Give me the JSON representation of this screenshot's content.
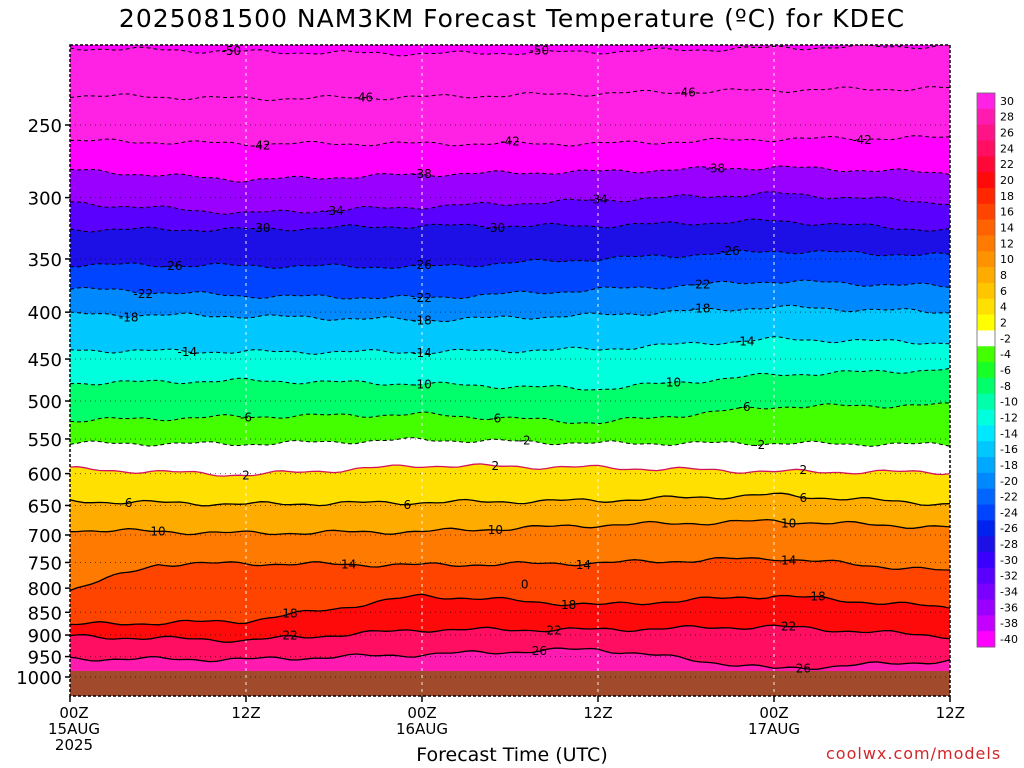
{
  "title": "2025081500 NAM3KM Forecast Temperature (ºC) for KDEC",
  "credit": "coolwx.com/models",
  "chart_data": {
    "type": "heatmap",
    "title": "2025081500 NAM3KM Forecast Temperature (ºC) for KDEC",
    "xlabel": "Forecast Time (UTC)",
    "x_ticks": [
      {
        "hour": 0,
        "lines": [
          "00Z",
          "15AUG",
          "2025"
        ]
      },
      {
        "hour": 12,
        "lines": [
          "12Z"
        ]
      },
      {
        "hour": 24,
        "lines": [
          "00Z",
          "16AUG"
        ]
      },
      {
        "hour": 36,
        "lines": [
          "12Z"
        ]
      },
      {
        "hour": 48,
        "lines": [
          "00Z",
          "17AUG"
        ]
      },
      {
        "hour": 60,
        "lines": [
          "12Z"
        ]
      }
    ],
    "xlim": [
      0,
      60
    ],
    "ylabel": "",
    "y_ticks": [
      250,
      300,
      350,
      400,
      450,
      500,
      550,
      600,
      650,
      700,
      750,
      800,
      850,
      900,
      950,
      1000
    ],
    "ylim": [
      1050,
      200
    ],
    "y_scale": "log",
    "colorbar_labels": [
      "30",
      "28",
      "26",
      "24",
      "22",
      "20",
      "18",
      "16",
      "14",
      "12",
      "10",
      "8",
      "6",
      "4",
      "2",
      "-2",
      "-4",
      "-6",
      "-8",
      "-10",
      "-12",
      "-14",
      "-16",
      "-18",
      "-20",
      "-22",
      "-24",
      "-26",
      "-28",
      "-30",
      "-32",
      "-34",
      "-36",
      "-38",
      "-40"
    ],
    "colorbar_colors": [
      "#ff22e4",
      "#ff1ab0",
      "#ff1488",
      "#ff0e62",
      "#ff0838",
      "#ff0a0a",
      "#ff2600",
      "#ff4400",
      "#ff6200",
      "#ff7a00",
      "#ff9200",
      "#ffac00",
      "#ffc600",
      "#ffe000",
      "#ffff00",
      "#ffffff",
      "#44ff00",
      "#18ff28",
      "#00ff6a",
      "#00ffaa",
      "#00ffdd",
      "#00e8ff",
      "#00c8ff",
      "#00a8ff",
      "#0088ff",
      "#0066ff",
      "#0044ff",
      "#0022ee",
      "#1c10e6",
      "#3a00ff",
      "#5a00ff",
      "#7a00ff",
      "#9a00ff",
      "#c400ff",
      "#ff00ff"
    ],
    "ground_color": "#a24a2c",
    "contours": [
      {
        "value": -50,
        "pressure_by_hour": [
          [
            0,
            206
          ],
          [
            12,
            208
          ],
          [
            24,
            209
          ],
          [
            36,
            208
          ],
          [
            48,
            206
          ],
          [
            60,
            205
          ]
        ],
        "labels": [
          {
            "hour": 11,
            "text": "-50"
          },
          {
            "hour": 32,
            "text": "-50"
          }
        ]
      },
      {
        "value": -46,
        "pressure_by_hour": [
          [
            0,
            232
          ],
          [
            12,
            234
          ],
          [
            24,
            233
          ],
          [
            36,
            231
          ],
          [
            48,
            229
          ],
          [
            60,
            228
          ]
        ],
        "labels": [
          {
            "hour": 20,
            "text": "-46"
          },
          {
            "hour": 42,
            "text": "-46"
          }
        ]
      },
      {
        "value": -42,
        "pressure_by_hour": [
          [
            0,
            260
          ],
          [
            12,
            262
          ],
          [
            24,
            262
          ],
          [
            36,
            262
          ],
          [
            48,
            259
          ],
          [
            60,
            258
          ]
        ],
        "labels": [
          {
            "hour": 13,
            "text": "-42"
          },
          {
            "hour": 30,
            "text": "-42"
          },
          {
            "hour": 54,
            "text": "-42"
          }
        ]
      },
      {
        "value": -38,
        "pressure_by_hour": [
          [
            0,
            280
          ],
          [
            12,
            287
          ],
          [
            24,
            283
          ],
          [
            36,
            281
          ],
          [
            48,
            278
          ],
          [
            60,
            282
          ]
        ],
        "labels": [
          {
            "hour": 24,
            "text": "-38"
          },
          {
            "hour": 44,
            "text": "-38"
          }
        ]
      },
      {
        "value": -34,
        "pressure_by_hour": [
          [
            0,
            304
          ],
          [
            12,
            312
          ],
          [
            24,
            307
          ],
          [
            36,
            302
          ],
          [
            48,
            297
          ],
          [
            60,
            304
          ]
        ],
        "labels": [
          {
            "hour": 18,
            "text": "-34"
          },
          {
            "hour": 36,
            "text": "-34"
          }
        ]
      },
      {
        "value": -30,
        "pressure_by_hour": [
          [
            0,
            325
          ],
          [
            12,
            325
          ],
          [
            24,
            322
          ],
          [
            36,
            322
          ],
          [
            48,
            318
          ],
          [
            60,
            326
          ]
        ],
        "labels": [
          {
            "hour": 13,
            "text": "-30"
          },
          {
            "hour": 29,
            "text": "-30"
          }
        ]
      },
      {
        "value": -26,
        "pressure_by_hour": [
          [
            0,
            355
          ],
          [
            12,
            356
          ],
          [
            24,
            357
          ],
          [
            36,
            350
          ],
          [
            48,
            343
          ],
          [
            60,
            347
          ]
        ],
        "labels": [
          {
            "hour": 7,
            "text": "-26"
          },
          {
            "hour": 24,
            "text": "-26"
          },
          {
            "hour": 45,
            "text": "-26"
          }
        ]
      },
      {
        "value": -22,
        "pressure_by_hour": [
          [
            0,
            377
          ],
          [
            12,
            384
          ],
          [
            24,
            386
          ],
          [
            36,
            378
          ],
          [
            48,
            370
          ],
          [
            60,
            375
          ]
        ],
        "labels": [
          {
            "hour": 5,
            "text": "-22"
          },
          {
            "hour": 24,
            "text": "-22"
          },
          {
            "hour": 43,
            "text": "-22"
          }
        ]
      },
      {
        "value": -18,
        "pressure_by_hour": [
          [
            0,
            402
          ],
          [
            12,
            404
          ],
          [
            24,
            408
          ],
          [
            36,
            403
          ],
          [
            48,
            395
          ],
          [
            60,
            400
          ]
        ],
        "labels": [
          {
            "hour": 4,
            "text": "-18"
          },
          {
            "hour": 24,
            "text": "-18"
          },
          {
            "hour": 43,
            "text": "-18"
          }
        ]
      },
      {
        "value": -14,
        "pressure_by_hour": [
          [
            0,
            440
          ],
          [
            12,
            442
          ],
          [
            24,
            442
          ],
          [
            36,
            439
          ],
          [
            48,
            428
          ],
          [
            60,
            432
          ]
        ],
        "labels": [
          {
            "hour": 8,
            "text": "-14"
          },
          {
            "hour": 24,
            "text": "-14"
          },
          {
            "hour": 46,
            "text": "-14"
          }
        ]
      },
      {
        "value": -10,
        "pressure_by_hour": [
          [
            0,
            478
          ],
          [
            12,
            475
          ],
          [
            24,
            479
          ],
          [
            36,
            485
          ],
          [
            48,
            468
          ],
          [
            60,
            462
          ]
        ],
        "labels": [
          {
            "hour": 24,
            "text": "-10"
          },
          {
            "hour": 41,
            "text": "-10"
          }
        ]
      },
      {
        "value": -6,
        "pressure_by_hour": [
          [
            0,
            525
          ],
          [
            12,
            520
          ],
          [
            24,
            517
          ],
          [
            36,
            528
          ],
          [
            48,
            507
          ],
          [
            60,
            505
          ]
        ],
        "labels": [
          {
            "hour": 12,
            "text": "-6"
          },
          {
            "hour": 29,
            "text": "-6"
          },
          {
            "hour": 46,
            "text": "-6"
          }
        ]
      },
      {
        "value": -2,
        "pressure_by_hour": [
          [
            0,
            556
          ],
          [
            12,
            557
          ],
          [
            24,
            551
          ],
          [
            36,
            556
          ],
          [
            48,
            556
          ],
          [
            60,
            558
          ]
        ],
        "labels": [
          {
            "hour": 31,
            "text": "-2"
          },
          {
            "hour": 47,
            "text": "-2"
          }
        ]
      },
      {
        "value": 2,
        "pressure_by_hour": [
          [
            0,
            593
          ],
          [
            12,
            602
          ],
          [
            24,
            588
          ],
          [
            36,
            591
          ],
          [
            48,
            597
          ],
          [
            60,
            598
          ]
        ],
        "labels": [
          {
            "hour": 12,
            "text": "2"
          },
          {
            "hour": 29,
            "text": "2"
          },
          {
            "hour": 50,
            "text": "2"
          }
        ]
      },
      {
        "value": 6,
        "pressure_by_hour": [
          [
            0,
            643
          ],
          [
            12,
            648
          ],
          [
            24,
            645
          ],
          [
            36,
            642
          ],
          [
            48,
            633
          ],
          [
            60,
            648
          ]
        ],
        "labels": [
          {
            "hour": 4,
            "text": "6"
          },
          {
            "hour": 23,
            "text": "6"
          },
          {
            "hour": 50,
            "text": "6"
          }
        ]
      },
      {
        "value": 10,
        "pressure_by_hour": [
          [
            0,
            691
          ],
          [
            12,
            697
          ],
          [
            24,
            694
          ],
          [
            36,
            683
          ],
          [
            48,
            676
          ],
          [
            60,
            687
          ]
        ],
        "labels": [
          {
            "hour": 6,
            "text": "10"
          },
          {
            "hour": 29,
            "text": "10"
          },
          {
            "hour": 49,
            "text": "10"
          }
        ]
      },
      {
        "value": 14,
        "pressure_by_hour": [
          [
            0,
            803
          ],
          [
            6,
            753
          ],
          [
            12,
            752
          ],
          [
            24,
            755
          ],
          [
            36,
            751
          ],
          [
            48,
            742
          ],
          [
            60,
            767
          ]
        ],
        "labels": [
          {
            "hour": 19,
            "text": "14"
          },
          {
            "hour": 35,
            "text": "14"
          },
          {
            "hour": 49,
            "text": "14"
          }
        ]
      },
      {
        "value": 18,
        "pressure_by_hour": [
          [
            0,
            877
          ],
          [
            12,
            869
          ],
          [
            24,
            815
          ],
          [
            36,
            835
          ],
          [
            48,
            815
          ],
          [
            60,
            840
          ]
        ],
        "labels": [
          {
            "hour": 15,
            "text": "18"
          },
          {
            "hour": 34,
            "text": "18"
          },
          {
            "hour": 51,
            "text": "18"
          }
        ]
      },
      {
        "value": 22,
        "pressure_by_hour": [
          [
            0,
            903
          ],
          [
            12,
            912
          ],
          [
            24,
            888
          ],
          [
            36,
            888
          ],
          [
            48,
            881
          ],
          [
            60,
            903
          ]
        ],
        "labels": [
          {
            "hour": 15,
            "text": "22"
          },
          {
            "hour": 33,
            "text": "22"
          },
          {
            "hour": 49,
            "text": "22"
          }
        ]
      },
      {
        "value": 26,
        "pressure_by_hour": [
          [
            0,
            955
          ],
          [
            12,
            957
          ],
          [
            24,
            945
          ],
          [
            36,
            932
          ],
          [
            48,
            980
          ],
          [
            60,
            960
          ]
        ],
        "labels": [
          {
            "hour": 32,
            "text": "26"
          },
          {
            "hour": 50,
            "text": "26"
          }
        ]
      }
    ],
    "annotations": [
      {
        "hour": 31,
        "pressure": 793,
        "text": "0"
      }
    ]
  }
}
